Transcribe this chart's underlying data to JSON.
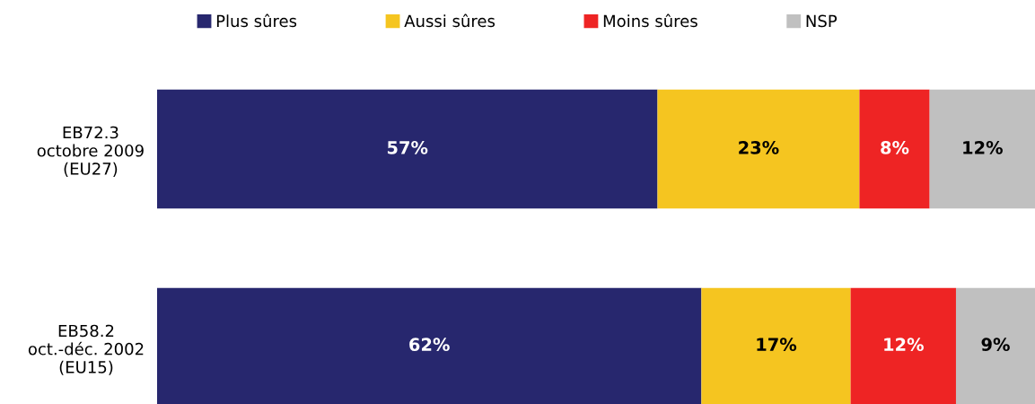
{
  "chart_data": {
    "type": "bar",
    "orientation": "horizontal",
    "stacked": true,
    "legend": "top",
    "grid": false,
    "tick_labels": "y",
    "categories": [
      "EB72.3\noctobre 2009\n(EU27)",
      "EB58.2\noct.-déc. 2002\n(EU15)"
    ],
    "series": [
      {
        "name": "Plus sûres",
        "color": "#27276e",
        "values": [
          57,
          62
        ],
        "value_labels": [
          "57%",
          "62%"
        ]
      },
      {
        "name": "Aussi sûres",
        "color": "#f5c520",
        "values": [
          23,
          17
        ],
        "value_labels": [
          "23%",
          "17%"
        ]
      },
      {
        "name": "Moins sûres",
        "color": "#ee2424",
        "values": [
          8,
          12
        ],
        "value_labels": [
          "8%",
          "12%"
        ]
      },
      {
        "name": "NSP",
        "color": "#c0c0c0",
        "values": [
          12,
          9
        ],
        "value_labels": [
          "12%",
          "9%"
        ]
      }
    ]
  }
}
